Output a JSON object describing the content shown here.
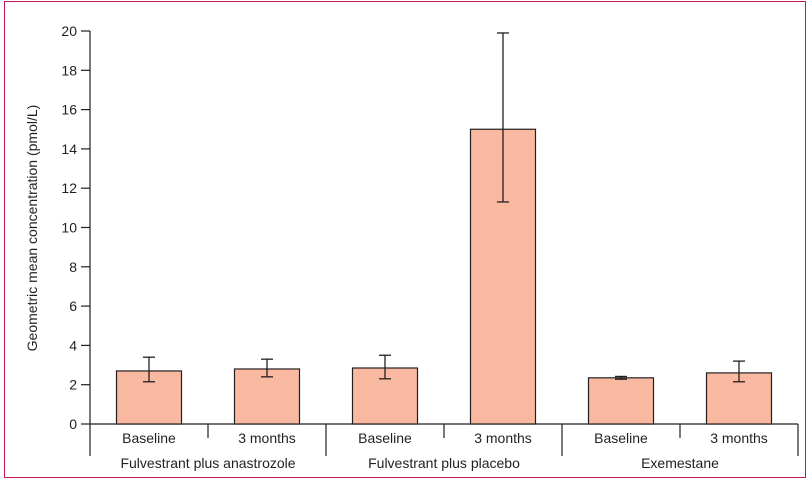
{
  "chart_data": {
    "type": "bar",
    "ylabel": "Geometric mean concentration (pmol/L)",
    "ylim": [
      0,
      20
    ],
    "yticks": [
      0,
      2,
      4,
      6,
      8,
      10,
      12,
      14,
      16,
      18,
      20
    ],
    "groups": [
      "Fulvestrant plus anastrozole",
      "Fulvestrant plus placebo",
      "Exemestane"
    ],
    "categories": [
      "Baseline",
      "3 months",
      "Baseline",
      "3 months",
      "Baseline",
      "3 months"
    ],
    "values": [
      2.7,
      2.8,
      2.85,
      15.0,
      2.35,
      2.6
    ],
    "error_low": [
      2.15,
      2.4,
      2.3,
      11.3,
      2.28,
      2.15
    ],
    "error_high": [
      3.4,
      3.3,
      3.5,
      19.9,
      2.42,
      3.2
    ],
    "bar_color": "#f9b9a0",
    "frame_color": "#c2185b",
    "grid": false
  }
}
